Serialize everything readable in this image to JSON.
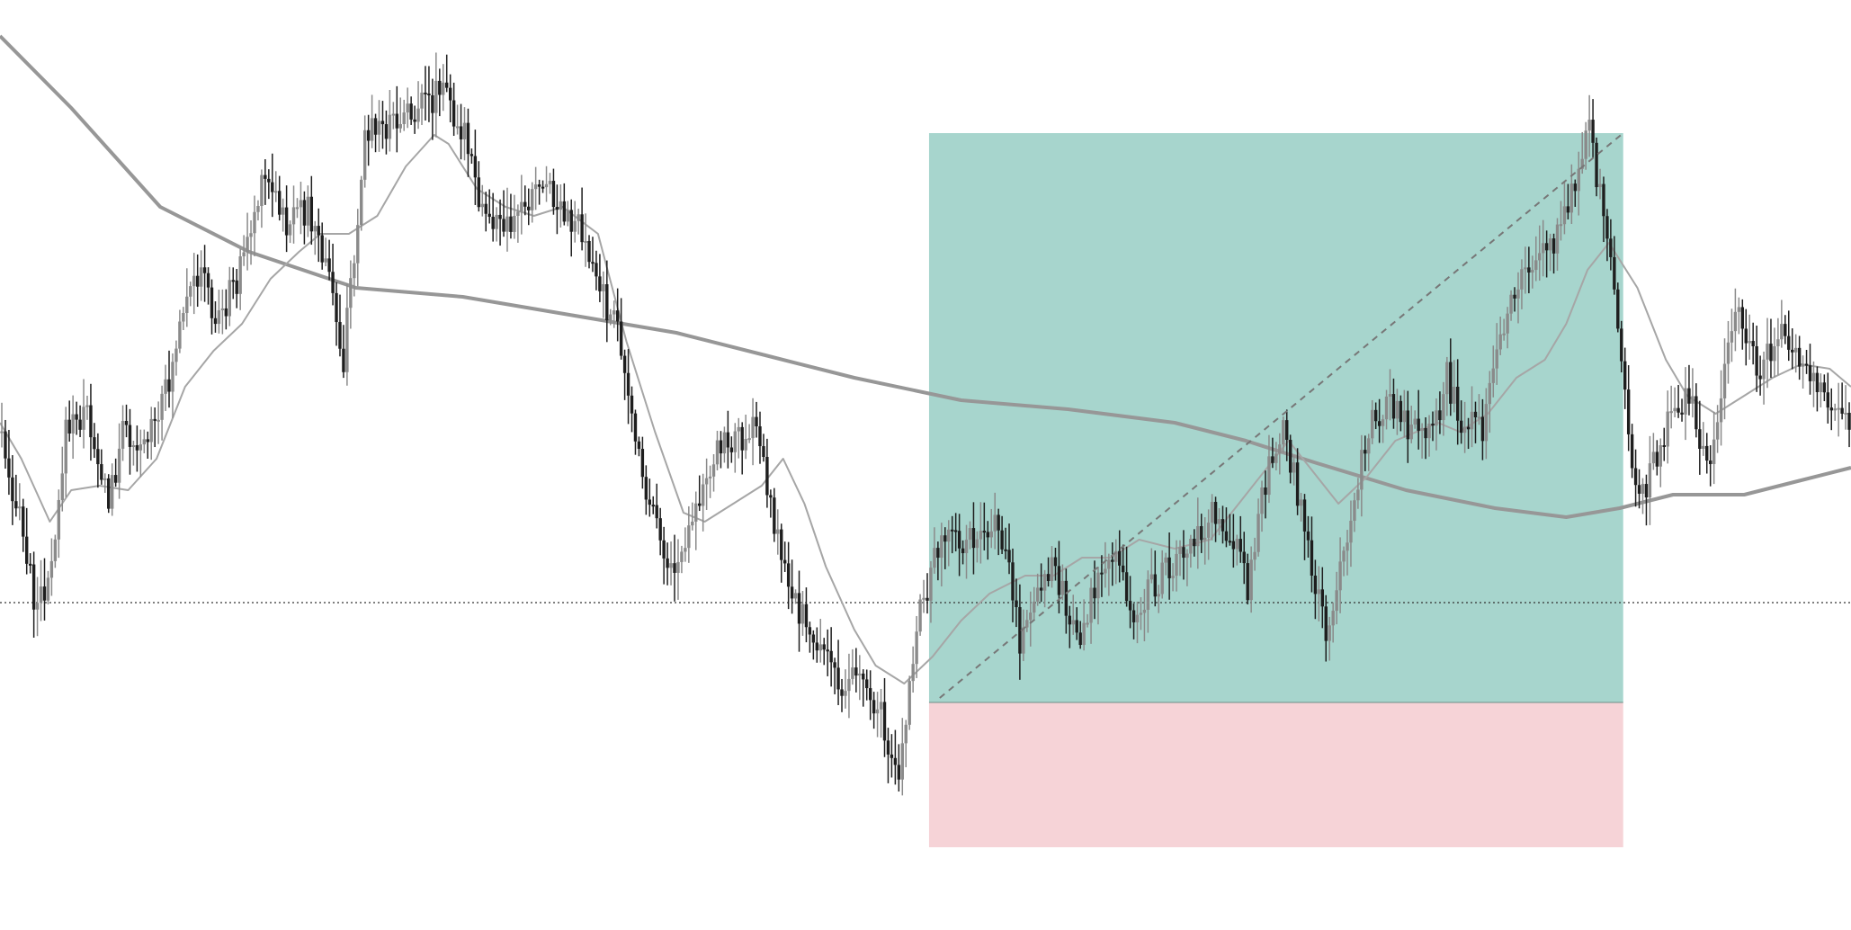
{
  "chart_data": {
    "type": "candlestick",
    "title": "",
    "xlabel": "",
    "ylabel": "",
    "axes_visible": false,
    "grid": false,
    "legend": "none",
    "ylim": [
      0,
      1034
    ],
    "xlim": [
      0,
      520
    ],
    "colors": {
      "background": "#ffffff",
      "candle_bull": "#8a8a8a",
      "candle_bear": "#1e1e1e",
      "profit_zone": "#a7d5cd",
      "loss_zone": "#f6d3d7",
      "ma_fast": "#a6a6a6",
      "ma_slow": "#979797",
      "reference_line": "#333333",
      "trade_line": "#777777"
    },
    "price_path": [
      [
        0,
        480
      ],
      [
        4,
        560
      ],
      [
        10,
        680
      ],
      [
        14,
        620
      ],
      [
        18,
        480
      ],
      [
        24,
        460
      ],
      [
        30,
        560
      ],
      [
        34,
        480
      ],
      [
        40,
        490
      ],
      [
        44,
        470
      ],
      [
        50,
        370
      ],
      [
        56,
        290
      ],
      [
        60,
        360
      ],
      [
        66,
        310
      ],
      [
        70,
        250
      ],
      [
        74,
        200
      ],
      [
        80,
        250
      ],
      [
        86,
        230
      ],
      [
        92,
        310
      ],
      [
        96,
        400
      ],
      [
        102,
        150
      ],
      [
        110,
        140
      ],
      [
        118,
        120
      ],
      [
        124,
        100
      ],
      [
        130,
        150
      ],
      [
        134,
        230
      ],
      [
        140,
        250
      ],
      [
        146,
        230
      ],
      [
        152,
        200
      ],
      [
        158,
        250
      ],
      [
        162,
        240
      ],
      [
        168,
        320
      ],
      [
        174,
        380
      ],
      [
        180,
        540
      ],
      [
        188,
        640
      ],
      [
        194,
        590
      ],
      [
        200,
        500
      ],
      [
        206,
        490
      ],
      [
        212,
        470
      ],
      [
        218,
        600
      ],
      [
        224,
        680
      ],
      [
        230,
        720
      ],
      [
        236,
        760
      ],
      [
        240,
        740
      ],
      [
        246,
        785
      ],
      [
        252,
        860
      ],
      [
        258,
        680
      ],
      [
        264,
        590
      ],
      [
        270,
        610
      ],
      [
        276,
        580
      ],
      [
        282,
        600
      ],
      [
        286,
        720
      ],
      [
        290,
        670
      ],
      [
        296,
        630
      ],
      [
        302,
        720
      ],
      [
        306,
        660
      ],
      [
        312,
        610
      ],
      [
        318,
        690
      ],
      [
        322,
        660
      ],
      [
        328,
        630
      ],
      [
        334,
        600
      ],
      [
        340,
        570
      ],
      [
        346,
        600
      ],
      [
        350,
        650
      ],
      [
        356,
        510
      ],
      [
        360,
        470
      ],
      [
        366,
        590
      ],
      [
        372,
        700
      ],
      [
        378,
        610
      ],
      [
        384,
        470
      ],
      [
        390,
        450
      ],
      [
        396,
        480
      ],
      [
        402,
        490
      ],
      [
        406,
        420
      ],
      [
        410,
        470
      ],
      [
        416,
        480
      ],
      [
        420,
        400
      ],
      [
        426,
        310
      ],
      [
        432,
        280
      ],
      [
        438,
        260
      ],
      [
        442,
        200
      ],
      [
        446,
        150
      ],
      [
        452,
        280
      ],
      [
        458,
        530
      ],
      [
        462,
        540
      ],
      [
        468,
        470
      ],
      [
        474,
        440
      ],
      [
        480,
        530
      ],
      [
        484,
        390
      ],
      [
        488,
        350
      ],
      [
        494,
        420
      ],
      [
        500,
        360
      ],
      [
        506,
        410
      ],
      [
        512,
        440
      ],
      [
        516,
        460
      ],
      [
        520,
        470
      ]
    ],
    "ma_fast_path": [
      [
        0,
        470
      ],
      [
        6,
        510
      ],
      [
        14,
        580
      ],
      [
        20,
        545
      ],
      [
        28,
        540
      ],
      [
        36,
        545
      ],
      [
        44,
        510
      ],
      [
        52,
        430
      ],
      [
        60,
        390
      ],
      [
        68,
        360
      ],
      [
        76,
        310
      ],
      [
        84,
        280
      ],
      [
        90,
        260
      ],
      [
        98,
        260
      ],
      [
        106,
        240
      ],
      [
        114,
        185
      ],
      [
        122,
        150
      ],
      [
        126,
        160
      ],
      [
        134,
        210
      ],
      [
        142,
        230
      ],
      [
        150,
        240
      ],
      [
        158,
        230
      ],
      [
        168,
        260
      ],
      [
        176,
        380
      ],
      [
        184,
        480
      ],
      [
        192,
        570
      ],
      [
        198,
        580
      ],
      [
        206,
        560
      ],
      [
        214,
        540
      ],
      [
        220,
        510
      ],
      [
        226,
        560
      ],
      [
        232,
        630
      ],
      [
        240,
        700
      ],
      [
        246,
        740
      ],
      [
        254,
        760
      ],
      [
        262,
        730
      ],
      [
        270,
        690
      ],
      [
        278,
        660
      ],
      [
        288,
        640
      ],
      [
        296,
        640
      ],
      [
        304,
        620
      ],
      [
        312,
        620
      ],
      [
        320,
        600
      ],
      [
        330,
        610
      ],
      [
        340,
        600
      ],
      [
        348,
        560
      ],
      [
        356,
        520
      ],
      [
        362,
        490
      ],
      [
        368,
        520
      ],
      [
        376,
        560
      ],
      [
        384,
        530
      ],
      [
        392,
        490
      ],
      [
        398,
        480
      ],
      [
        404,
        470
      ],
      [
        410,
        480
      ],
      [
        418,
        460
      ],
      [
        426,
        420
      ],
      [
        434,
        400
      ],
      [
        440,
        360
      ],
      [
        446,
        300
      ],
      [
        452,
        270
      ],
      [
        460,
        320
      ],
      [
        468,
        400
      ],
      [
        474,
        440
      ],
      [
        482,
        460
      ],
      [
        490,
        440
      ],
      [
        498,
        420
      ],
      [
        506,
        405
      ],
      [
        514,
        410
      ],
      [
        520,
        430
      ]
    ],
    "ma_slow_path": [
      [
        0,
        40
      ],
      [
        20,
        120
      ],
      [
        45,
        230
      ],
      [
        70,
        280
      ],
      [
        100,
        320
      ],
      [
        130,
        330
      ],
      [
        160,
        350
      ],
      [
        190,
        370
      ],
      [
        215,
        395
      ],
      [
        240,
        420
      ],
      [
        270,
        445
      ],
      [
        300,
        455
      ],
      [
        330,
        470
      ],
      [
        350,
        490
      ],
      [
        370,
        515
      ],
      [
        395,
        545
      ],
      [
        420,
        565
      ],
      [
        440,
        575
      ],
      [
        455,
        565
      ],
      [
        470,
        550
      ],
      [
        490,
        550
      ],
      [
        505,
        535
      ],
      [
        520,
        520
      ]
    ],
    "reference_level": 670,
    "position": {
      "direction": "long",
      "x_start": 261,
      "x_end": 456,
      "take_profit": 148,
      "entry": 781,
      "stop_loss": 942,
      "trade_line_from": [
        264,
        776
      ],
      "trade_line_to": [
        456,
        148
      ]
    }
  }
}
